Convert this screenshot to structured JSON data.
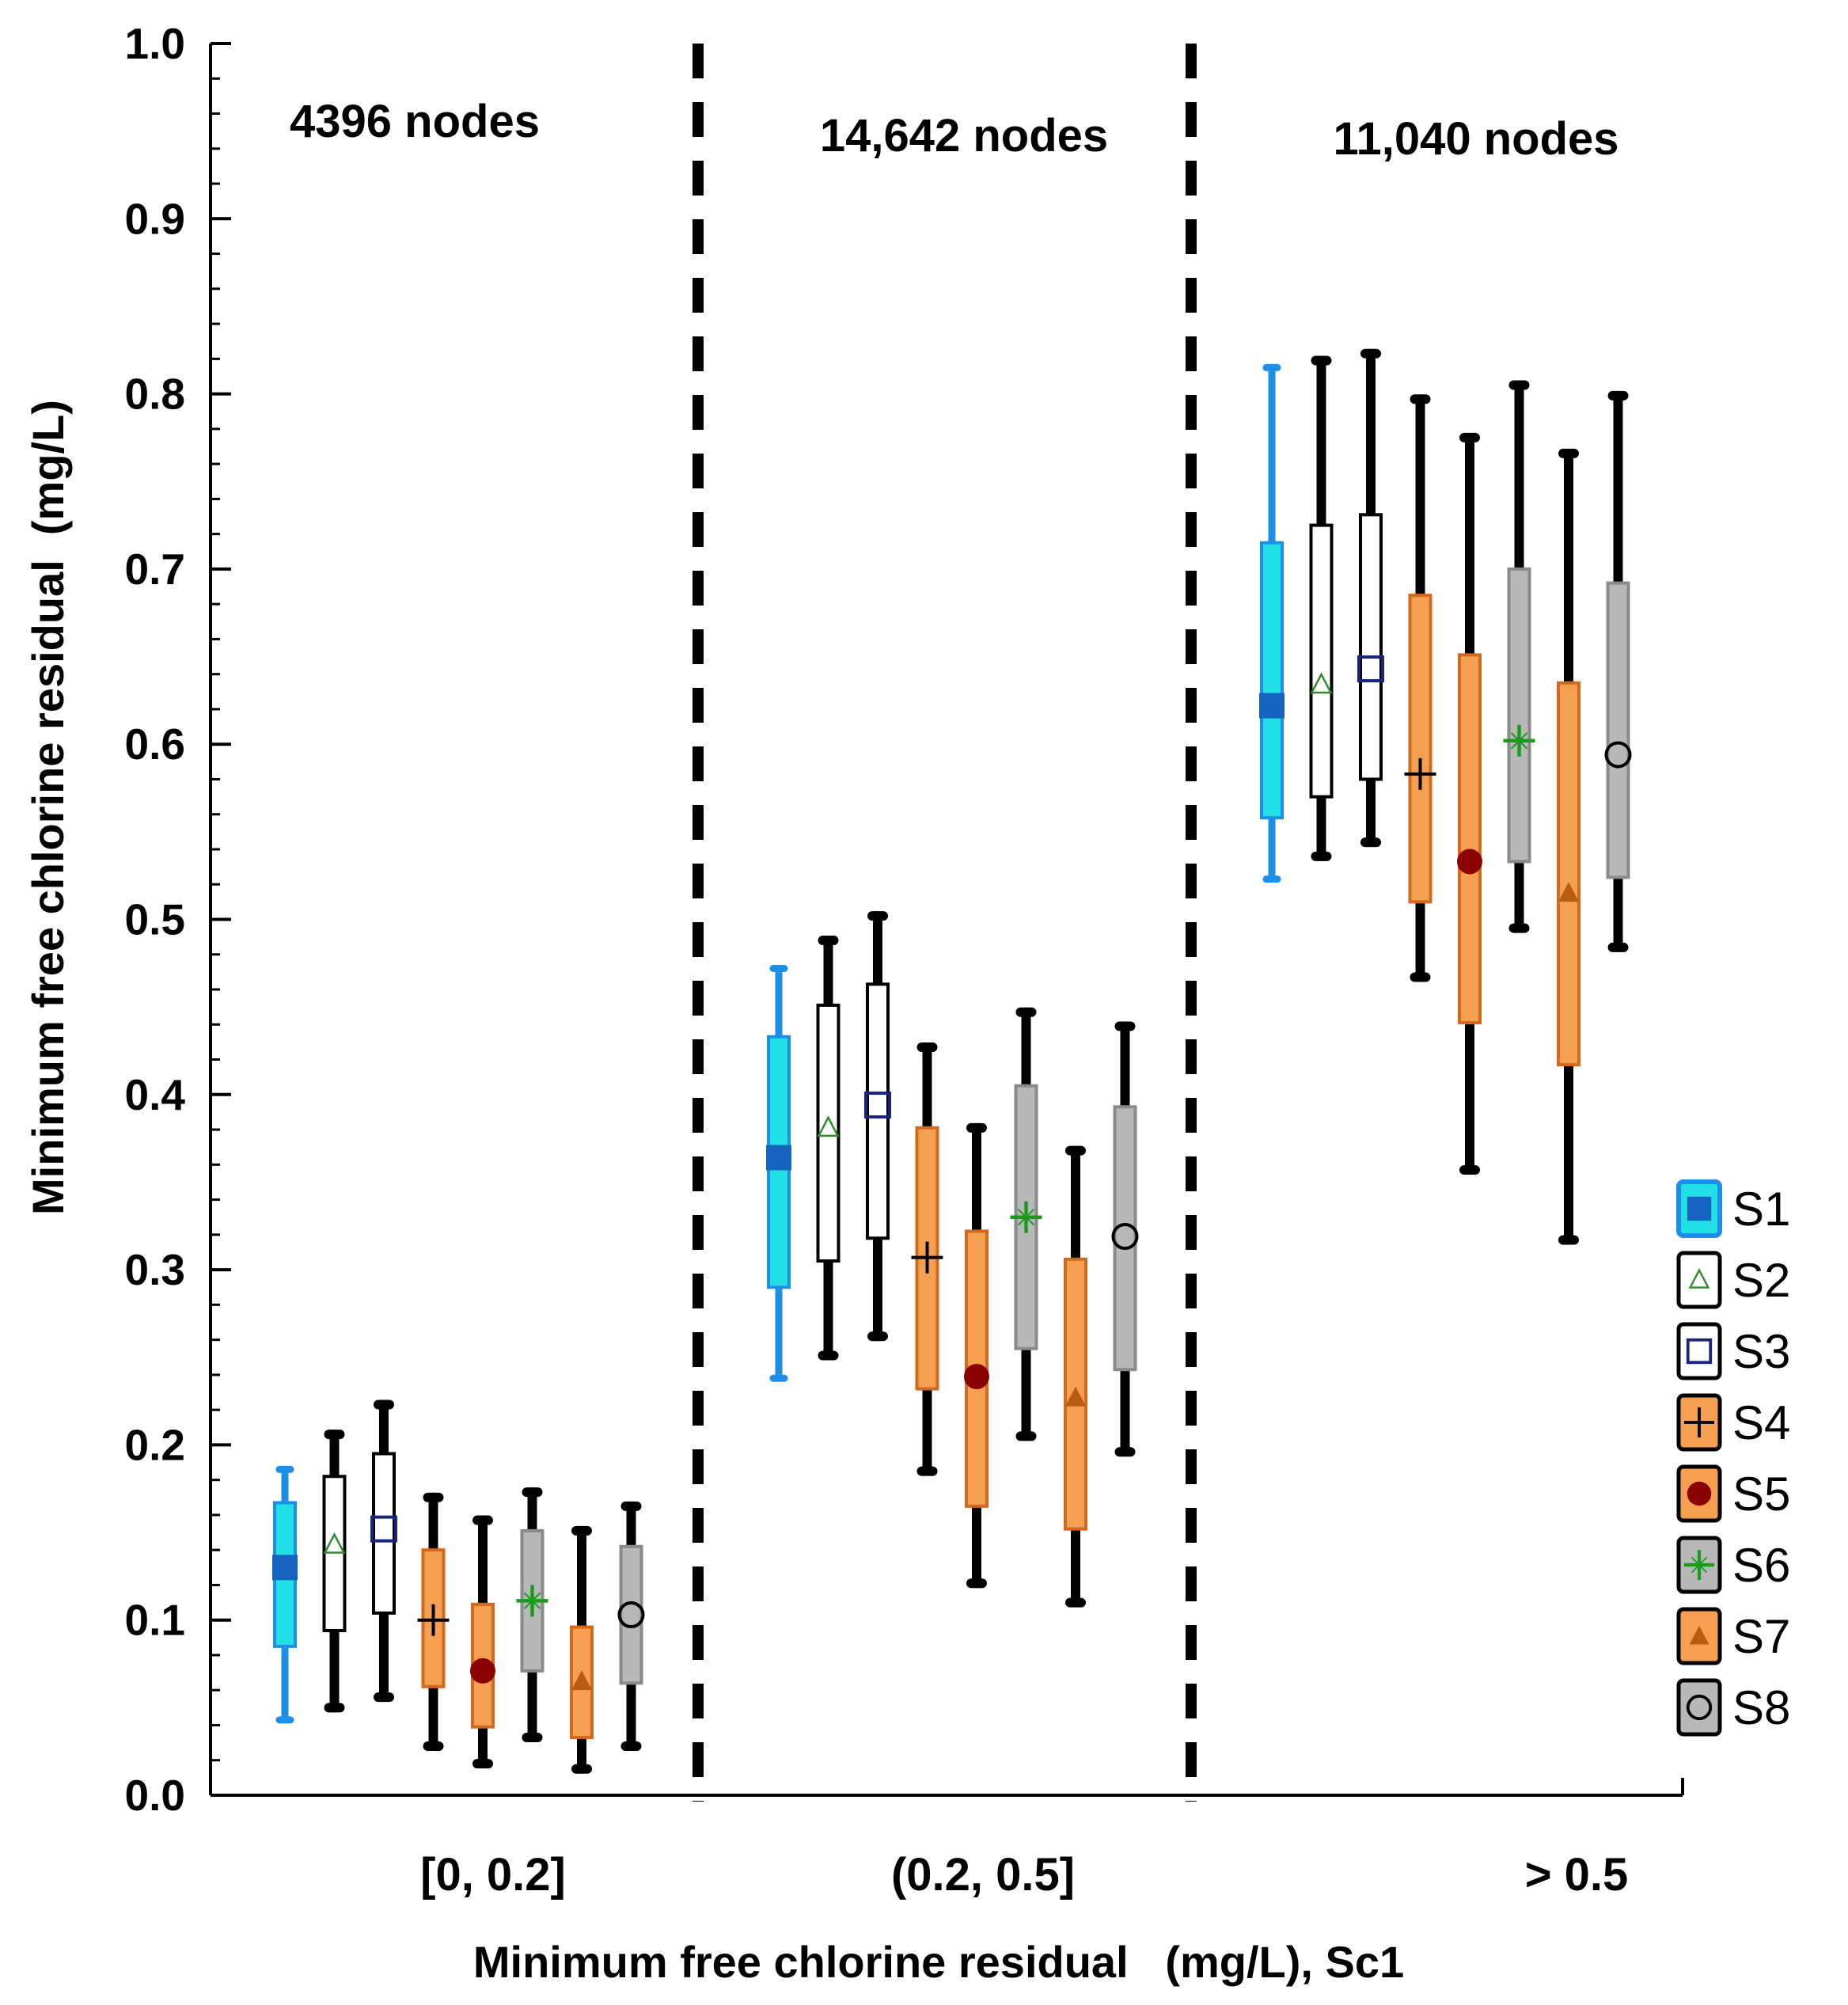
{
  "chart_data": {
    "type": "boxplot",
    "title": "",
    "xlabel": "Minimum free chlorine residual   (mg/L), Sc1",
    "ylabel": "Minimum free chlorine residual  (mg/L)",
    "ylim": [
      0.0,
      1.0
    ],
    "yticks": [
      "0.0",
      "0.1",
      "0.2",
      "0.3",
      "0.4",
      "0.5",
      "0.6",
      "0.7",
      "0.8",
      "0.9",
      "1.0"
    ],
    "grid": false,
    "legend_position": "right",
    "groups": [
      {
        "label": "[0, 0.2]",
        "annotation": "4396 nodes"
      },
      {
        "label": "(0.2, 0.5]",
        "annotation": "14,642 nodes"
      },
      {
        "label": "> 0.5",
        "annotation": "11,040 nodes"
      }
    ],
    "series": [
      {
        "name": "S1",
        "box_fill": "#22e0e6",
        "box_edge": "#1e8fe8",
        "whisker": "#1e8fe8",
        "marker": "filled-square",
        "marker_color": "#1565c0",
        "stats": [
          {
            "min": 0.043,
            "q1": 0.085,
            "median": 0.13,
            "q3": 0.167,
            "max": 0.186
          },
          {
            "min": 0.238,
            "q1": 0.29,
            "median": 0.364,
            "q3": 0.433,
            "max": 0.472
          },
          {
            "min": 0.523,
            "q1": 0.558,
            "median": 0.622,
            "q3": 0.715,
            "max": 0.815
          }
        ]
      },
      {
        "name": "S2",
        "box_fill": "#ffffff",
        "box_edge": "#000000",
        "whisker": "#000000",
        "marker": "open-triangle",
        "marker_color": "#2e8b2e",
        "stats": [
          {
            "min": 0.05,
            "q1": 0.094,
            "median": 0.143,
            "q3": 0.182,
            "max": 0.206
          },
          {
            "min": 0.251,
            "q1": 0.305,
            "median": 0.381,
            "q3": 0.451,
            "max": 0.488
          },
          {
            "min": 0.536,
            "q1": 0.57,
            "median": 0.634,
            "q3": 0.725,
            "max": 0.819
          }
        ]
      },
      {
        "name": "S3",
        "box_fill": "#ffffff",
        "box_edge": "#000000",
        "whisker": "#000000",
        "marker": "open-square",
        "marker_color": "#1a237e",
        "stats": [
          {
            "min": 0.056,
            "q1": 0.104,
            "median": 0.152,
            "q3": 0.195,
            "max": 0.223
          },
          {
            "min": 0.262,
            "q1": 0.318,
            "median": 0.394,
            "q3": 0.463,
            "max": 0.502
          },
          {
            "min": 0.544,
            "q1": 0.58,
            "median": 0.643,
            "q3": 0.731,
            "max": 0.823
          }
        ]
      },
      {
        "name": "S4",
        "box_fill": "#f5a050",
        "box_edge": "#d2691e",
        "whisker": "#000000",
        "marker": "plus",
        "marker_color": "#000000",
        "stats": [
          {
            "min": 0.028,
            "q1": 0.062,
            "median": 0.1,
            "q3": 0.14,
            "max": 0.17
          },
          {
            "min": 0.185,
            "q1": 0.232,
            "median": 0.307,
            "q3": 0.381,
            "max": 0.427
          },
          {
            "min": 0.467,
            "q1": 0.51,
            "median": 0.583,
            "q3": 0.685,
            "max": 0.797
          }
        ]
      },
      {
        "name": "S5",
        "box_fill": "#f5a050",
        "box_edge": "#d2691e",
        "whisker": "#000000",
        "marker": "filled-circle",
        "marker_color": "#8b0000",
        "stats": [
          {
            "min": 0.018,
            "q1": 0.039,
            "median": 0.071,
            "q3": 0.109,
            "max": 0.157
          },
          {
            "min": 0.121,
            "q1": 0.165,
            "median": 0.239,
            "q3": 0.322,
            "max": 0.381
          },
          {
            "min": 0.357,
            "q1": 0.441,
            "median": 0.533,
            "q3": 0.651,
            "max": 0.775
          }
        ]
      },
      {
        "name": "S6",
        "box_fill": "#b8b8b8",
        "box_edge": "#8a8a8a",
        "whisker": "#000000",
        "marker": "asterisk-plus",
        "marker_color": "#1a9c1a",
        "stats": [
          {
            "min": 0.033,
            "q1": 0.071,
            "median": 0.111,
            "q3": 0.151,
            "max": 0.173
          },
          {
            "min": 0.205,
            "q1": 0.255,
            "median": 0.33,
            "q3": 0.405,
            "max": 0.447
          },
          {
            "min": 0.495,
            "q1": 0.533,
            "median": 0.602,
            "q3": 0.7,
            "max": 0.805
          }
        ]
      },
      {
        "name": "S7",
        "box_fill": "#f5a050",
        "box_edge": "#d2691e",
        "whisker": "#000000",
        "marker": "filled-triangle",
        "marker_color": "#b85c10",
        "stats": [
          {
            "min": 0.015,
            "q1": 0.033,
            "median": 0.065,
            "q3": 0.096,
            "max": 0.151
          },
          {
            "min": 0.11,
            "q1": 0.152,
            "median": 0.227,
            "q3": 0.306,
            "max": 0.368
          },
          {
            "min": 0.317,
            "q1": 0.417,
            "median": 0.515,
            "q3": 0.635,
            "max": 0.766
          }
        ]
      },
      {
        "name": "S8",
        "box_fill": "#b8b8b8",
        "box_edge": "#8a8a8a",
        "whisker": "#000000",
        "marker": "open-circle",
        "marker_color": "#000000",
        "stats": [
          {
            "min": 0.028,
            "q1": 0.064,
            "median": 0.103,
            "q3": 0.142,
            "max": 0.165
          },
          {
            "min": 0.196,
            "q1": 0.243,
            "median": 0.319,
            "q3": 0.393,
            "max": 0.439
          },
          {
            "min": 0.484,
            "q1": 0.524,
            "median": 0.594,
            "q3": 0.692,
            "max": 0.799
          }
        ]
      }
    ]
  }
}
